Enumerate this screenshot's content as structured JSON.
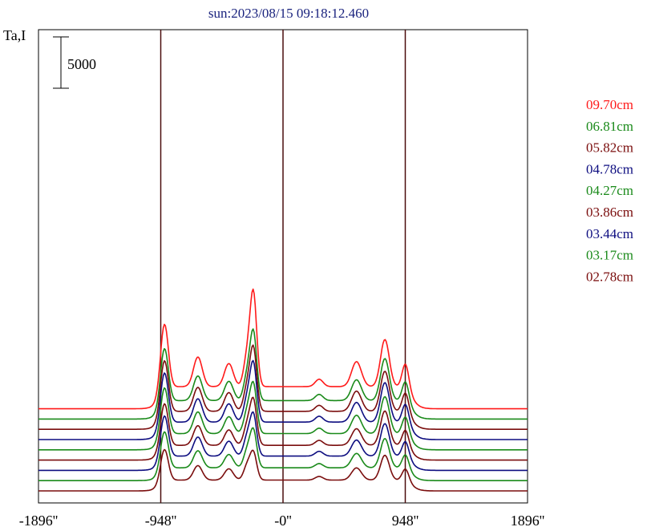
{
  "chart_data": {
    "type": "line",
    "title": "sun:2023/08/15 09:18:12.460",
    "ylabel": "Ta,I",
    "scale_bar_label": "5000",
    "scale_bar_value": 5000,
    "xlim": [
      -1896,
      1896
    ],
    "x_ticks": [
      "-1896''",
      "-948''",
      "-0''",
      "948''",
      "1896''"
    ],
    "x_tick_values": [
      -1896,
      -948,
      0,
      948,
      1896
    ],
    "vertical_reference_lines": [
      -948,
      0,
      948
    ],
    "legend_placement": "right",
    "series": [
      {
        "name": "09.70cm",
        "color": "#ff1a1a",
        "offset": 8000,
        "peak1": 17000,
        "peak2": 20200,
        "peak_right": 15400
      },
      {
        "name": "06.81cm",
        "color": "#1a8a1a",
        "offset": 7000,
        "peak1": 14500,
        "peak2": 15900,
        "peak_right": 13600
      },
      {
        "name": "05.82cm",
        "color": "#7a0d0d",
        "offset": 6000,
        "peak1": 13300,
        "peak2": 14200,
        "peak_right": 12300
      },
      {
        "name": "04.78cm",
        "color": "#0d0d80",
        "offset": 5000,
        "peak1": 12100,
        "peak2": 12600,
        "peak_right": 11200
      },
      {
        "name": "04.27cm",
        "color": "#1a8a1a",
        "offset": 4000,
        "peak1": 10600,
        "peak2": 10400,
        "peak_right": 9800
      },
      {
        "name": "03.86cm",
        "color": "#7a0d0d",
        "offset": 3000,
        "peak1": 9000,
        "peak2": 8900,
        "peak_right": 8400
      },
      {
        "name": "03.44cm",
        "color": "#0d0d80",
        "offset": 2000,
        "peak1": 7800,
        "peak2": 7400,
        "peak_right": 7100
      },
      {
        "name": "03.17cm",
        "color": "#1a8a1a",
        "offset": 1000,
        "peak1": 6200,
        "peak2": 5900,
        "peak_right": 5600
      },
      {
        "name": "02.78cm",
        "color": "#7a0d0d",
        "offset": 0,
        "peak1": 4400,
        "peak2": 3600,
        "peak_right": 3900
      }
    ]
  }
}
